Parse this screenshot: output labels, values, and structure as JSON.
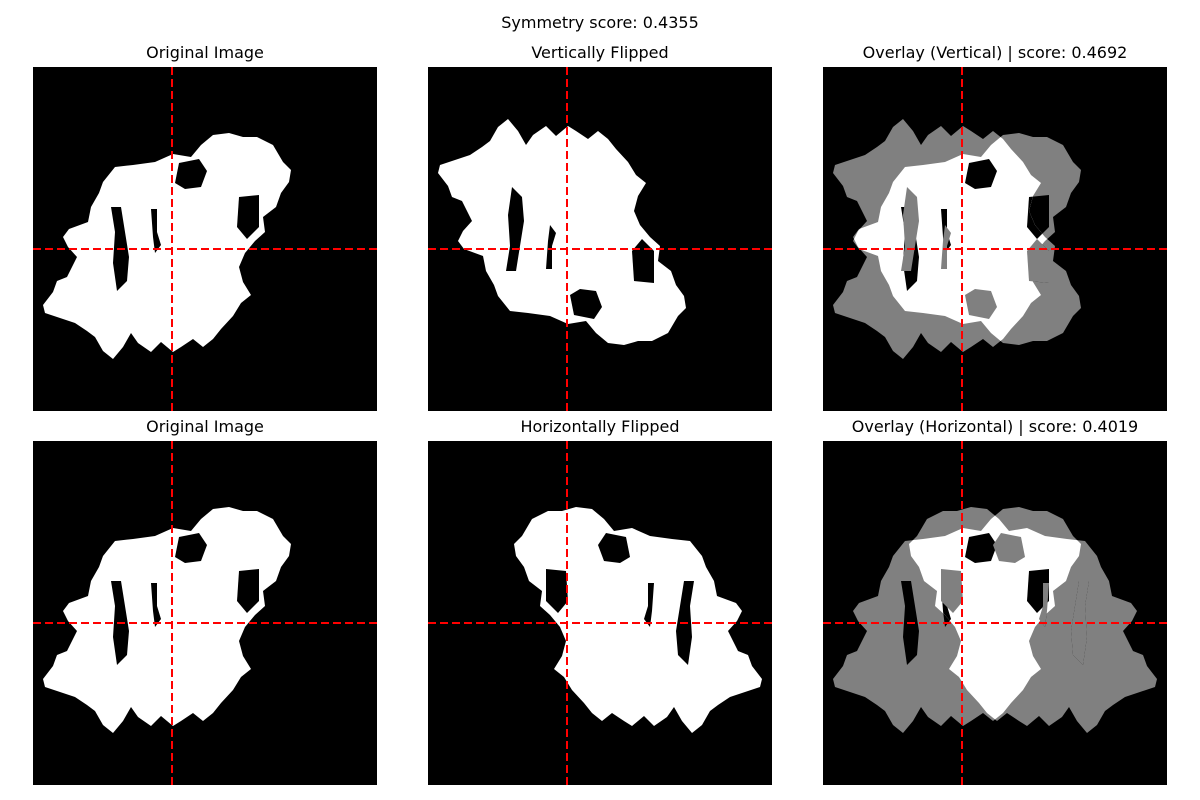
{
  "figure": {
    "suptitle": "Symmetry score: 0.4355",
    "colors": {
      "background": "#000000",
      "blob": "#ffffff",
      "overlap": "#ffffff",
      "non_overlap": "#808080",
      "crosshair": "#ff0000"
    }
  },
  "chart_data": [
    {
      "type": "heatmap",
      "title": "Original Image",
      "variant": "original",
      "grid": false,
      "crosshair": "dashed-center"
    },
    {
      "type": "heatmap",
      "title": "Vertically Flipped",
      "variant": "flip-vertical",
      "grid": false,
      "crosshair": "dashed-center"
    },
    {
      "type": "heatmap",
      "title": "Overlay (Vertical) | score: 0.4692",
      "variant": "overlay-vertical",
      "score": 0.4692,
      "grid": false,
      "crosshair": "dashed-center"
    },
    {
      "type": "heatmap",
      "title": "Original Image",
      "variant": "original",
      "grid": false,
      "crosshair": "dashed-center"
    },
    {
      "type": "heatmap",
      "title": "Horizontally Flipped",
      "variant": "flip-horizontal",
      "grid": false,
      "crosshair": "dashed-center"
    },
    {
      "type": "heatmap",
      "title": "Overlay (Horizontal) | score: 0.4019",
      "variant": "overlay-horizontal",
      "score": 0.4019,
      "grid": false,
      "crosshair": "dashed-center"
    }
  ]
}
